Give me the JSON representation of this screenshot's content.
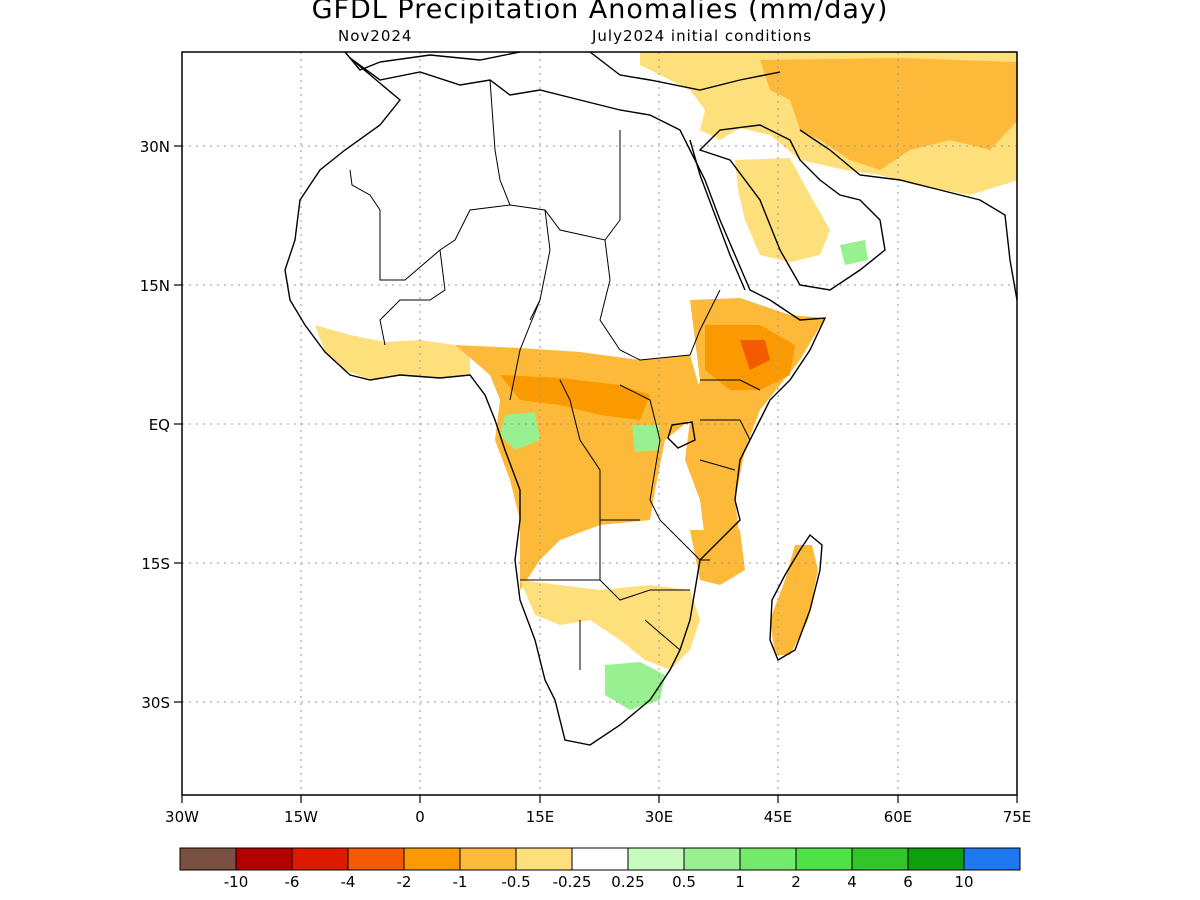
{
  "header": {
    "title": "GFDL Precipitation Anomalies (mm/day)",
    "valid_month": "Nov2024",
    "init_conditions": "July2024 initial conditions"
  },
  "map": {
    "lon_range": [
      -30,
      75
    ],
    "lat_range": [
      -40,
      40
    ],
    "lon_ticks": [
      {
        "value": -30,
        "label": "30W"
      },
      {
        "value": -15,
        "label": "15W"
      },
      {
        "value": 0,
        "label": "0"
      },
      {
        "value": 15,
        "label": "15E"
      },
      {
        "value": 30,
        "label": "30E"
      },
      {
        "value": 45,
        "label": "45E"
      },
      {
        "value": 60,
        "label": "60E"
      },
      {
        "value": 75,
        "label": "75E"
      }
    ],
    "lat_ticks": [
      {
        "value": 30,
        "label": "30N"
      },
      {
        "value": 15,
        "label": "15N"
      },
      {
        "value": 0,
        "label": "EQ"
      },
      {
        "value": -15,
        "label": "15S"
      },
      {
        "value": -30,
        "label": "30S"
      }
    ],
    "grid": true,
    "colors": {
      "land_outline": "#000000",
      "grid": "#9a9a9a"
    }
  },
  "colorbar": {
    "colors": [
      "#7a5043",
      "#b50000",
      "#dd1a00",
      "#f45b00",
      "#fa9a00",
      "#fdb93a",
      "#fde07c",
      "#ffffff",
      "#c8fbc0",
      "#98f090",
      "#74ea6c",
      "#4fe247",
      "#33c32b",
      "#0e9e0e",
      "#1e78f0"
    ],
    "labels": [
      "-10",
      "-6",
      "-4",
      "-2",
      "-1",
      "-0.5",
      "-0.25",
      "0.25",
      "0.5",
      "1",
      "2",
      "4",
      "6",
      "10"
    ]
  }
}
